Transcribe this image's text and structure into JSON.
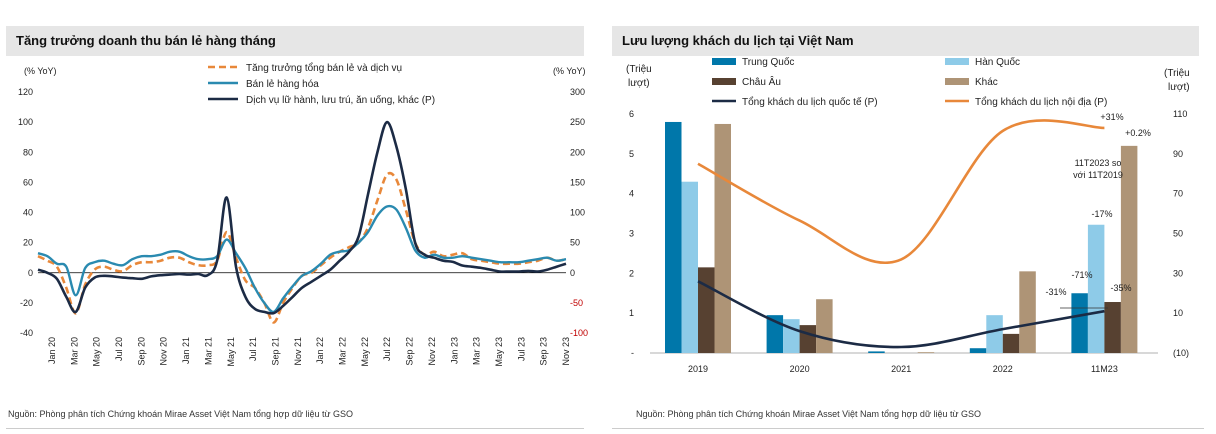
{
  "left_panel": {
    "title": "Tăng trưởng doanh thu bán lẻ hàng tháng",
    "source": "Nguồn: Phòng phân tích Chứng khoán Mirae Asset Việt Nam tổng hợp dữ liệu từ GSO"
  },
  "right_panel": {
    "title": "Lưu lượng khách du lịch tại Việt Nam",
    "source": "Nguồn: Phòng phân tích Chứng khoán Mirae Asset Việt Nam tổng hợp dữ liệu từ GSO"
  },
  "chart_data": [
    {
      "type": "line",
      "title": "Tăng trưởng doanh thu bán lẻ hàng tháng",
      "ylabel_left": "(% YoY)",
      "ylabel_right": "(% YoY)",
      "ylim_left": [
        -40,
        120
      ],
      "ylim_right": [
        -100,
        300
      ],
      "yticks_left": [
        "120",
        "100",
        "80",
        "60",
        "40",
        "20",
        "0",
        "-20",
        "-40"
      ],
      "yticks_right": [
        "300",
        "250",
        "200",
        "150",
        "100",
        "50",
        "0",
        "-50",
        "-100"
      ],
      "right_negative_color": "#c00000",
      "x_tick_labels": [
        "Jan 20",
        "Mar 20",
        "May 20",
        "Jul 20",
        "Sep 20",
        "Nov 20",
        "Jan 21",
        "Mar 21",
        "May 21",
        "Jul 21",
        "Sep 21",
        "Nov 21",
        "Jan 22",
        "Mar 22",
        "May 22",
        "Jul 22",
        "Sep 22",
        "Nov 22",
        "Jan 23",
        "Mar 23",
        "May 23",
        "Jul 23",
        "Sep 23",
        "Nov 23"
      ],
      "series": [
        {
          "name": "Tăng trưởng tổng bán lẻ và dịch vụ",
          "axis": "left",
          "color": "#e8883a",
          "dashed": true,
          "values": [
            11,
            8,
            4,
            -10,
            -27,
            -8,
            2,
            4,
            2,
            1,
            5,
            7,
            7,
            8,
            10,
            10,
            7,
            5,
            5,
            8,
            27,
            10,
            -5,
            -10,
            -20,
            -33,
            -20,
            -10,
            -2,
            0,
            5,
            10,
            14,
            17,
            20,
            30,
            48,
            65,
            62,
            42,
            20,
            12,
            14,
            11,
            12,
            13,
            9,
            8,
            7,
            6,
            6,
            6,
            7,
            8,
            10,
            8,
            9
          ]
        },
        {
          "name": "Bán lẻ hàng hóa",
          "axis": "left",
          "color": "#2a8ab0",
          "dashed": false,
          "values": [
            13,
            11,
            6,
            4,
            -15,
            3,
            7,
            8,
            6,
            5,
            9,
            11,
            11,
            12,
            14,
            14,
            11,
            9,
            9,
            11,
            22,
            13,
            3,
            -10,
            -20,
            -26,
            -17,
            -9,
            -2,
            1,
            6,
            12,
            14,
            15,
            20,
            27,
            38,
            44,
            42,
            30,
            15,
            10,
            12,
            10,
            10,
            11,
            10,
            9,
            8,
            7,
            7,
            7,
            8,
            9,
            10,
            8,
            9
          ]
        },
        {
          "name": "Dịch vụ lữ hành, lưu trú, ăn uống, khác (P)",
          "axis": "right",
          "color": "#1c2b45",
          "dashed": false,
          "values": [
            5,
            0,
            -10,
            -40,
            -65,
            -25,
            -8,
            -5,
            -6,
            -8,
            -9,
            -10,
            -6,
            -4,
            -3,
            -2,
            -3,
            -2,
            -4,
            20,
            125,
            10,
            -40,
            -60,
            -65,
            -67,
            -55,
            -40,
            -25,
            -15,
            -5,
            5,
            20,
            35,
            60,
            130,
            200,
            250,
            210,
            140,
            50,
            30,
            25,
            20,
            18,
            12,
            10,
            8,
            5,
            2,
            2,
            2,
            3,
            2,
            5,
            10,
            15
          ]
        }
      ]
    },
    {
      "type": "bar",
      "title": "Lưu lượng khách du lịch tại Việt Nam",
      "ylabel_left": "(Triệu lượt)",
      "ylabel_right": "(Triệu lượt)",
      "ylim_left": [
        0,
        6
      ],
      "ylim_right": [
        -10,
        110
      ],
      "yticks_left": [
        "6",
        "5",
        "4",
        "3",
        "2",
        "1",
        "-"
      ],
      "yticks_right": [
        "110",
        "90",
        "70",
        "50",
        "30",
        "10",
        "(10)"
      ],
      "categories": [
        "2019",
        "2020",
        "2021",
        "2022",
        "11M23"
      ],
      "series": [
        {
          "name": "Trung Quốc",
          "color": "#0077aa",
          "values": [
            5.8,
            0.95,
            0.04,
            0.12,
            1.5
          ]
        },
        {
          "name": "Hàn Quốc",
          "color": "#8ecbe8",
          "values": [
            4.3,
            0.85,
            0.0,
            0.95,
            3.22
          ]
        },
        {
          "name": "Châu Âu",
          "color": "#574131",
          "values": [
            2.15,
            0.7,
            0.0,
            0.48,
            1.28
          ]
        },
        {
          "name": "Khác",
          "color": "#ae9476",
          "values": [
            5.75,
            1.35,
            0.02,
            2.05,
            5.2
          ]
        }
      ],
      "lines": [
        {
          "name": "Tổng khách du lịch quốc tế (P)",
          "axis": "left",
          "color": "#1c2b45",
          "values": [
            1.8,
            0.55,
            0.15,
            0.6,
            1.05
          ]
        },
        {
          "name": "Tổng khách du lịch nội địa (P)",
          "axis": "right",
          "color": "#e8883a",
          "values": [
            85,
            56.5,
            37,
            101.5,
            103
          ]
        }
      ],
      "annotations": {
        "note": "11T2023 so với 11T2019",
        "labels": [
          "+31%",
          "+0.2%",
          "-17%",
          "-71%",
          "-31%",
          "-35%"
        ]
      }
    }
  ]
}
